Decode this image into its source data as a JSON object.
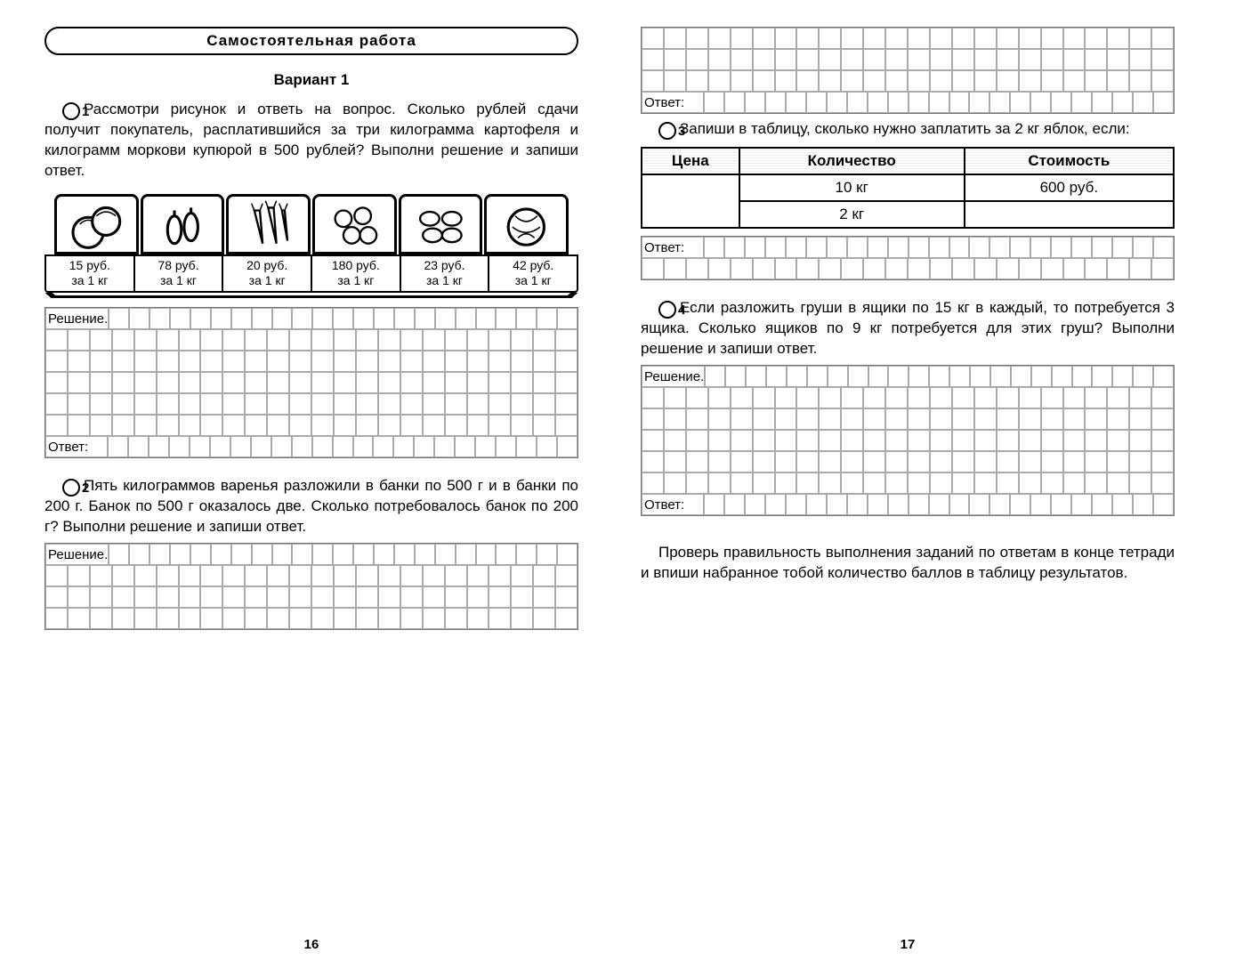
{
  "left": {
    "header": "Самостоятельная работа",
    "variant": "Вариант 1",
    "task1": {
      "num": "1",
      "text": "Рассмотри рисунок и ответь на вопрос. Сколько рублей сдачи получит покупатель, рас­платившийся за три килограмма картофеля и килограмм моркови купюрой в 500 рублей? Выполни решение и запиши ответ.",
      "prices": [
        {
          "price": "15 руб.",
          "per": "за 1 кг"
        },
        {
          "price": "78 руб.",
          "per": "за 1 кг"
        },
        {
          "price": "20 руб.",
          "per": "за 1 кг"
        },
        {
          "price": "180 руб.",
          "per": "за 1 кг"
        },
        {
          "price": "23 руб.",
          "per": "за 1 кг"
        },
        {
          "price": "42 руб.",
          "per": "за 1 кг"
        }
      ],
      "solution_label": "Решение.",
      "answer_label": "Ответ:"
    },
    "task2": {
      "num": "2",
      "text": "Пять килограммов варенья разложили в банки по 500 г и в банки по 200 г. Банок по 500 г оказа­лось две. Сколько потребовалось банок по 200 г? Выполни решение и запиши ответ.",
      "solution_label": "Решение."
    },
    "pagenum": "16"
  },
  "right": {
    "top_answer_label": "Ответ:",
    "task3": {
      "num": "3",
      "text": "Запиши в таблицу, сколько нужно заплатить за 2 кг яблок, если:",
      "headers": [
        "Цена",
        "Количество",
        "Стоимость"
      ],
      "rows": [
        [
          "",
          "10 кг",
          "600 руб."
        ],
        [
          "",
          "2 кг",
          ""
        ]
      ],
      "answer_label": "Ответ:"
    },
    "task4": {
      "num": "4",
      "text": "Если разложить груши в ящики по 15 кг в каж­дый, то потребуется 3 ящика. Сколько ящиков по 9 кг потребуется для этих груш? Выполни решение и запиши ответ.",
      "solution_label": "Решение.",
      "answer_label": "Ответ:"
    },
    "footer": "Проверь правильность выполнения заданий по ответам в конце тетради и впиши набранное тобой количество баллов в таблицу результатов.",
    "pagenum": "17"
  },
  "grid": {
    "cols": 24
  }
}
